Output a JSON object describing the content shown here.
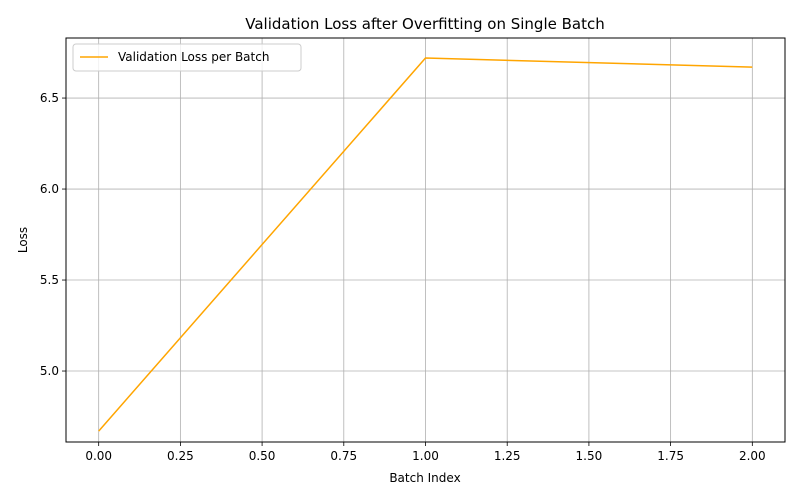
{
  "chart_data": {
    "type": "line",
    "title": "Validation Loss after Overfitting on Single Batch",
    "xlabel": "Batch Index",
    "ylabel": "Loss",
    "xlim": [
      -0.1,
      2.1
    ],
    "ylim": [
      4.61,
      6.83
    ],
    "x_ticks": [
      0.0,
      0.25,
      0.5,
      0.75,
      1.0,
      1.25,
      1.5,
      1.75,
      2.0
    ],
    "x_tick_labels": [
      "0.00",
      "0.25",
      "0.50",
      "0.75",
      "1.00",
      "1.25",
      "1.50",
      "1.75",
      "2.00"
    ],
    "y_ticks": [
      5.0,
      5.5,
      6.0,
      6.5
    ],
    "y_tick_labels": [
      "5.0",
      "5.5",
      "6.0",
      "6.5"
    ],
    "grid": true,
    "legend_position": "top-left",
    "series": [
      {
        "name": "Validation Loss per Batch",
        "color": "#FFA500",
        "x": [
          0,
          1,
          2
        ],
        "y": [
          4.67,
          6.72,
          6.67
        ]
      }
    ]
  }
}
